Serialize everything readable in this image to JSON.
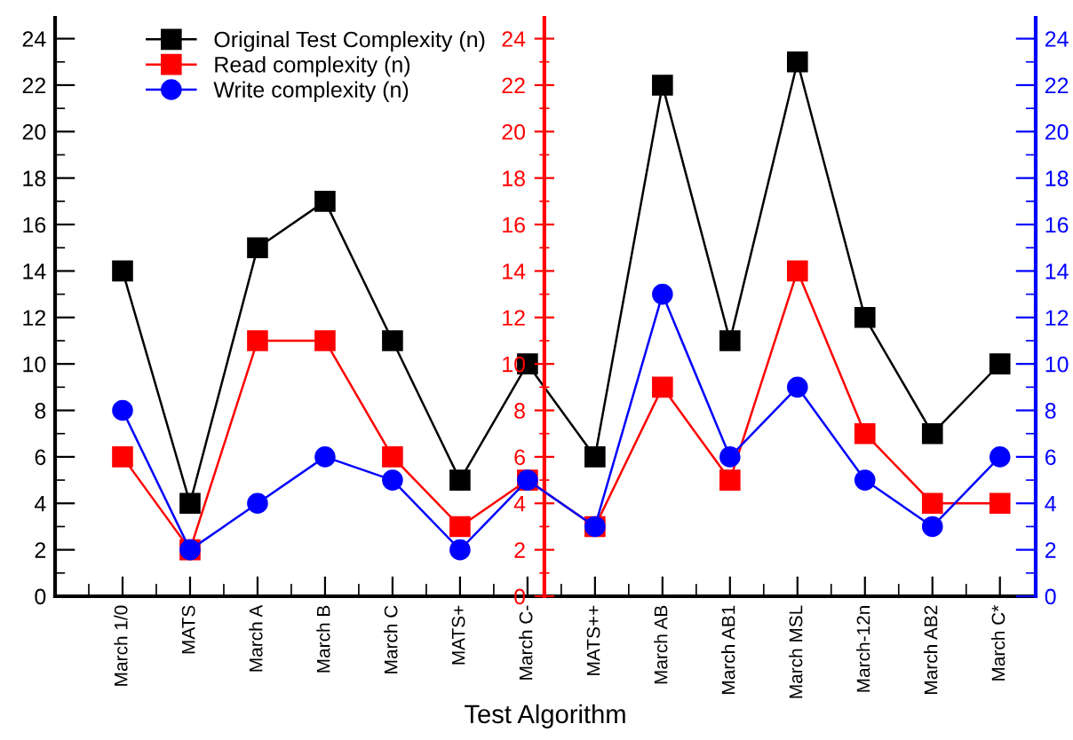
{
  "chart_data": {
    "type": "line",
    "xlabel": "Test Algorithm",
    "categories": [
      "March 1/0",
      "MATS",
      "March A",
      "March B",
      "March C",
      "MATS+",
      "March C-",
      "MATS++",
      "March AB",
      "March AB1",
      "March MSL",
      "March-12n",
      "March AB2",
      "March C*"
    ],
    "series": [
      {
        "name": "Original Test Complexity (n)",
        "color": "#000000",
        "marker": "square",
        "values": [
          14,
          4,
          15,
          17,
          11,
          5,
          10,
          6,
          22,
          11,
          23,
          12,
          7,
          10
        ]
      },
      {
        "name": "Read complexity (n)",
        "color": "#ff0000",
        "marker": "square",
        "axis": "y2",
        "values": [
          6,
          2,
          11,
          11,
          6,
          3,
          5,
          3,
          9,
          5,
          14,
          7,
          4,
          4
        ]
      },
      {
        "name": "Write complexity (n)",
        "color": "#0000ff",
        "marker": "circle",
        "axis": "y3",
        "values": [
          8,
          2,
          4,
          6,
          5,
          2,
          5,
          3,
          13,
          6,
          9,
          5,
          3,
          6
        ]
      }
    ],
    "ylim": [
      0,
      24.9
    ],
    "yticks": [
      0,
      2,
      4,
      6,
      8,
      10,
      12,
      14,
      16,
      18,
      20,
      22,
      24
    ],
    "y2lim": [
      0,
      24.9
    ],
    "y2ticks": [
      0,
      2,
      4,
      6,
      8,
      10,
      12,
      14,
      16,
      18,
      20,
      22,
      24
    ],
    "y3lim": [
      0,
      24.9
    ],
    "y3ticks": [
      0,
      2,
      4,
      6,
      8,
      10,
      12,
      14,
      16,
      18,
      20,
      22,
      24
    ],
    "legend": "top left",
    "grid": false
  }
}
